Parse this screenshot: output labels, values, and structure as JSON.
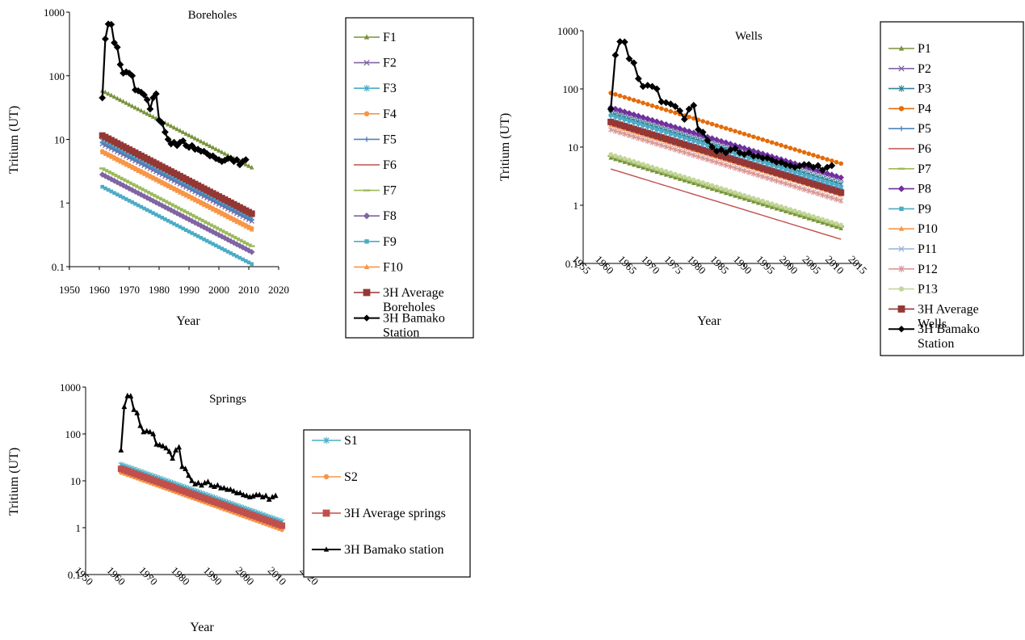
{
  "chart_data": [
    {
      "type": "line",
      "title": "Boreholes",
      "xlabel": "Year",
      "ylabel": "Tritium (UT)",
      "yscale": "log",
      "xlim": [
        1950,
        2020
      ],
      "ylim": [
        0.1,
        1000
      ],
      "x_ticks": [
        "1950",
        "1960",
        "1970",
        "1980",
        "1990",
        "2000",
        "2010",
        "2020"
      ],
      "y_ticks": [
        "0.1",
        "1",
        "10",
        "100",
        "1000"
      ],
      "legend_position": "right",
      "series": [
        {
          "name": "F1",
          "color": "#77933C",
          "marker": "triangle",
          "x": [
            1961,
            2011
          ],
          "y": [
            58,
            3.6
          ]
        },
        {
          "name": "F2",
          "color": "#8064A2",
          "marker": "x",
          "x": [
            1961,
            2011
          ],
          "y": [
            8.5,
            0.52
          ]
        },
        {
          "name": "F3",
          "color": "#4BACC6",
          "marker": "star",
          "x": [
            1961,
            2011
          ],
          "y": [
            9.5,
            0.58
          ]
        },
        {
          "name": "F4",
          "color": "#F79646",
          "marker": "circle",
          "x": [
            1961,
            2011
          ],
          "y": [
            6.5,
            0.4
          ]
        },
        {
          "name": "F5",
          "color": "#4F81BD",
          "marker": "plus",
          "x": [
            1961,
            2011
          ],
          "y": [
            8.8,
            0.54
          ]
        },
        {
          "name": "F6",
          "color": "#C0504D",
          "marker": "none",
          "x": [
            1961,
            2011
          ],
          "y": [
            11,
            0.67
          ]
        },
        {
          "name": "F7",
          "color": "#9BBB59",
          "marker": "dash",
          "x": [
            1961,
            2011
          ],
          "y": [
            3.5,
            0.21
          ]
        },
        {
          "name": "F8",
          "color": "#8064A2",
          "marker": "diamond",
          "x": [
            1961,
            2011
          ],
          "y": [
            2.8,
            0.17
          ]
        },
        {
          "name": "F9",
          "color": "#4BACC6",
          "marker": "square",
          "x": [
            1961,
            2011
          ],
          "y": [
            1.8,
            0.11
          ]
        },
        {
          "name": "F10",
          "color": "#F79646",
          "marker": "triangle",
          "x": [
            1961,
            2011
          ],
          "y": [
            6.2,
            0.38
          ]
        },
        {
          "name": "3H Average Boreholes",
          "color": "#953735",
          "marker": "bigsquare",
          "x": [
            1961,
            2011
          ],
          "y": [
            11.5,
            0.68
          ]
        },
        {
          "name": "3H Bamako Station",
          "color": "#000000",
          "marker": "diamond",
          "x": [
            1961,
            1962,
            1963,
            1964,
            1965,
            1966,
            1967,
            1968,
            1969,
            1970,
            1971,
            1972,
            1973,
            1974,
            1975,
            1976,
            1977,
            1978,
            1979,
            1980,
            1981,
            1982,
            1983,
            1984,
            1985,
            1986,
            1987,
            1988,
            1989,
            1990,
            1991,
            1992,
            1993,
            1994,
            1995,
            1996,
            1997,
            1998,
            1999,
            2000,
            2001,
            2002,
            2003,
            2004,
            2005,
            2006,
            2007,
            2008,
            2009
          ],
          "y": [
            45,
            380,
            650,
            640,
            330,
            280,
            150,
            110,
            115,
            110,
            100,
            60,
            58,
            55,
            50,
            42,
            30,
            45,
            52,
            20,
            18,
            13,
            10,
            8.5,
            9,
            8,
            9,
            9.5,
            8,
            7.5,
            8,
            7,
            7,
            6.5,
            6.5,
            6,
            5.5,
            5.5,
            5,
            4.8,
            4.5,
            4.7,
            5,
            5,
            4.5,
            4.8,
            4,
            4.5,
            4.8
          ]
        }
      ]
    },
    {
      "type": "line",
      "title": "Wells",
      "xlabel": "Year",
      "ylabel": "Tritium (UT)",
      "yscale": "log",
      "xlim": [
        1955,
        2015
      ],
      "ylim": [
        0.1,
        1000
      ],
      "x_ticks": [
        "1955",
        "1960",
        "1965",
        "1970",
        "1975",
        "1980",
        "1985",
        "1990",
        "1995",
        "2000",
        "2005",
        "2010",
        "2015"
      ],
      "y_ticks": [
        "0.1",
        "1",
        "10",
        "100",
        "1000"
      ],
      "legend_position": "right",
      "series": [
        {
          "name": "P1",
          "color": "#77933C",
          "marker": "triangle",
          "x": [
            1961,
            2011
          ],
          "y": [
            6.5,
            0.4
          ]
        },
        {
          "name": "P2",
          "color": "#8064A2",
          "marker": "x",
          "x": [
            1961,
            2011
          ],
          "y": [
            45,
            2.8
          ]
        },
        {
          "name": "P3",
          "color": "#31849B",
          "marker": "star",
          "x": [
            1961,
            2011
          ],
          "y": [
            38,
            2.3
          ]
        },
        {
          "name": "P4",
          "color": "#E46C0A",
          "marker": "circle",
          "x": [
            1961,
            2011
          ],
          "y": [
            85,
            5.2
          ]
        },
        {
          "name": "P5",
          "color": "#4F81BD",
          "marker": "plus",
          "x": [
            1961,
            2011
          ],
          "y": [
            30,
            1.9
          ]
        },
        {
          "name": "P6",
          "color": "#C0504D",
          "marker": "none",
          "x": [
            1961,
            2011
          ],
          "y": [
            4.2,
            0.26
          ]
        },
        {
          "name": "P7",
          "color": "#9BBB59",
          "marker": "dash",
          "x": [
            1961,
            2011
          ],
          "y": [
            7,
            0.43
          ]
        },
        {
          "name": "P8",
          "color": "#7030A0",
          "marker": "diamond",
          "x": [
            1961,
            2011
          ],
          "y": [
            48,
            3
          ]
        },
        {
          "name": "P9",
          "color": "#4BACC6",
          "marker": "square",
          "x": [
            1961,
            2011
          ],
          "y": [
            35,
            2.1
          ]
        },
        {
          "name": "P10",
          "color": "#F79646",
          "marker": "triangle",
          "x": [
            1961,
            2011
          ],
          "y": [
            24,
            1.5
          ]
        },
        {
          "name": "P11",
          "color": "#95B3D7",
          "marker": "x",
          "x": [
            1961,
            2011
          ],
          "y": [
            28,
            1.7
          ]
        },
        {
          "name": "P12",
          "color": "#D99694",
          "marker": "star",
          "x": [
            1961,
            2011
          ],
          "y": [
            20,
            1.2
          ]
        },
        {
          "name": "P13",
          "color": "#C3D69B",
          "marker": "circle",
          "x": [
            1961,
            2011
          ],
          "y": [
            7.5,
            0.46
          ]
        },
        {
          "name": "3H Average Wells",
          "color": "#953735",
          "marker": "bigsquare",
          "x": [
            1961,
            2011
          ],
          "y": [
            27,
            1.65
          ]
        },
        {
          "name": "3H Bamako Station",
          "color": "#000000",
          "marker": "diamond",
          "x": [
            1961,
            1962,
            1963,
            1964,
            1965,
            1966,
            1967,
            1968,
            1969,
            1970,
            1971,
            1972,
            1973,
            1974,
            1975,
            1976,
            1977,
            1978,
            1979,
            1980,
            1981,
            1982,
            1983,
            1984,
            1985,
            1986,
            1987,
            1988,
            1989,
            1990,
            1991,
            1992,
            1993,
            1994,
            1995,
            1996,
            1997,
            1998,
            1999,
            2000,
            2001,
            2002,
            2003,
            2004,
            2005,
            2006,
            2007,
            2008,
            2009
          ],
          "y": [
            45,
            380,
            650,
            640,
            330,
            280,
            150,
            110,
            115,
            110,
            100,
            60,
            58,
            55,
            50,
            42,
            30,
            45,
            52,
            20,
            18,
            13,
            10,
            8.5,
            9,
            8,
            9,
            9.5,
            8,
            7.5,
            8,
            7,
            7,
            6.5,
            6.5,
            6,
            5.5,
            5.5,
            5,
            4.8,
            4.5,
            4.7,
            5,
            5,
            4.5,
            4.8,
            4,
            4.5,
            4.8
          ]
        }
      ]
    },
    {
      "type": "line",
      "title": "Springs",
      "xlabel": "Year",
      "ylabel": "Tritium (UT)",
      "yscale": "log",
      "xlim": [
        1950,
        2020
      ],
      "ylim": [
        0.1,
        1000
      ],
      "x_ticks": [
        "1950",
        "1960",
        "1970",
        "1980",
        "1990",
        "2000",
        "2010",
        "2020"
      ],
      "y_ticks": [
        "0.1",
        "1",
        "10",
        "100",
        "1000"
      ],
      "legend_position": "right",
      "series": [
        {
          "name": "S1",
          "color": "#4BACC6",
          "marker": "star",
          "x": [
            1961,
            2011
          ],
          "y": [
            22,
            1.35
          ]
        },
        {
          "name": "S2",
          "color": "#F79646",
          "marker": "circle",
          "x": [
            1961,
            2011
          ],
          "y": [
            15,
            0.9
          ]
        },
        {
          "name": "3H Average springs",
          "color": "#C0504D",
          "marker": "bigsquare",
          "x": [
            1961,
            2011
          ],
          "y": [
            18,
            1.1
          ]
        },
        {
          "name": "3H Bamako station",
          "color": "#000000",
          "marker": "triangle",
          "x": [
            1961,
            1962,
            1963,
            1964,
            1965,
            1966,
            1967,
            1968,
            1969,
            1970,
            1971,
            1972,
            1973,
            1974,
            1975,
            1976,
            1977,
            1978,
            1979,
            1980,
            1981,
            1982,
            1983,
            1984,
            1985,
            1986,
            1987,
            1988,
            1989,
            1990,
            1991,
            1992,
            1993,
            1994,
            1995,
            1996,
            1997,
            1998,
            1999,
            2000,
            2001,
            2002,
            2003,
            2004,
            2005,
            2006,
            2007,
            2008,
            2009
          ],
          "y": [
            45,
            380,
            650,
            640,
            330,
            280,
            150,
            110,
            115,
            110,
            100,
            60,
            58,
            55,
            50,
            42,
            30,
            45,
            52,
            20,
            18,
            13,
            10,
            8.5,
            9,
            8,
            9,
            9.5,
            8,
            7.5,
            8,
            7,
            7,
            6.5,
            6.5,
            6,
            5.5,
            5.5,
            5,
            4.8,
            4.5,
            4.7,
            5,
            5,
            4.5,
            4.8,
            4,
            4.5,
            4.8
          ]
        }
      ]
    }
  ]
}
